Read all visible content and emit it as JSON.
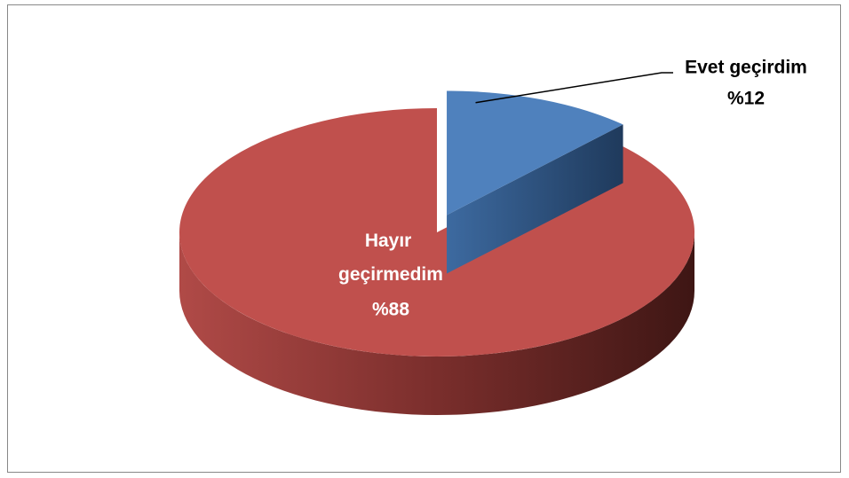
{
  "chart_data": {
    "type": "pie3d",
    "categories": [
      "Evet geçirdim",
      "Hayır geçirmedim"
    ],
    "values": [
      12,
      88
    ],
    "value_labels": [
      "%12",
      "%88"
    ],
    "colors": [
      "#4f81bd",
      "#c0504d"
    ],
    "start_angle": 0,
    "exploded": [
      true,
      false
    ]
  }
}
